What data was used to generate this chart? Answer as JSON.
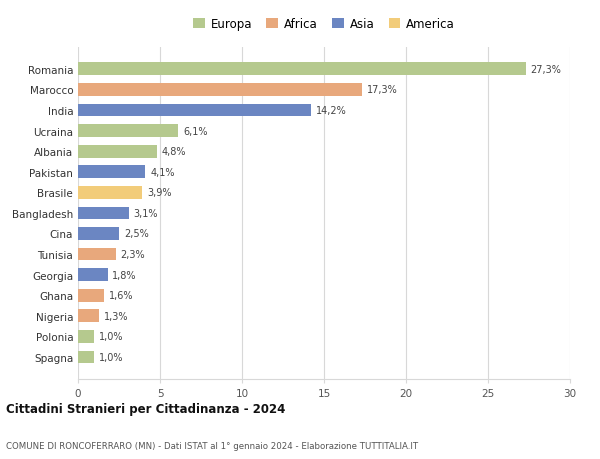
{
  "categories": [
    "Romania",
    "Marocco",
    "India",
    "Ucraina",
    "Albania",
    "Pakistan",
    "Brasile",
    "Bangladesh",
    "Cina",
    "Tunisia",
    "Georgia",
    "Ghana",
    "Nigeria",
    "Polonia",
    "Spagna"
  ],
  "values": [
    27.3,
    17.3,
    14.2,
    6.1,
    4.8,
    4.1,
    3.9,
    3.1,
    2.5,
    2.3,
    1.8,
    1.6,
    1.3,
    1.0,
    1.0
  ],
  "labels": [
    "27,3%",
    "17,3%",
    "14,2%",
    "6,1%",
    "4,8%",
    "4,1%",
    "3,9%",
    "3,1%",
    "2,5%",
    "2,3%",
    "1,8%",
    "1,6%",
    "1,3%",
    "1,0%",
    "1,0%"
  ],
  "colors": [
    "#b5c98e",
    "#e8a87c",
    "#6b86c2",
    "#b5c98e",
    "#b5c98e",
    "#6b86c2",
    "#f2cc7a",
    "#6b86c2",
    "#6b86c2",
    "#e8a87c",
    "#6b86c2",
    "#e8a87c",
    "#e8a87c",
    "#b5c98e",
    "#b5c98e"
  ],
  "legend": [
    {
      "label": "Europa",
      "color": "#b5c98e"
    },
    {
      "label": "Africa",
      "color": "#e8a87c"
    },
    {
      "label": "Asia",
      "color": "#6b86c2"
    },
    {
      "label": "America",
      "color": "#f2cc7a"
    }
  ],
  "xlim": [
    0,
    30
  ],
  "xticks": [
    0,
    5,
    10,
    15,
    20,
    25,
    30
  ],
  "title": "Cittadini Stranieri per Cittadinanza - 2024",
  "subtitle": "COMUNE DI RONCOFERRARO (MN) - Dati ISTAT al 1° gennaio 2024 - Elaborazione TUTTITALIA.IT",
  "background_color": "#ffffff",
  "grid_color": "#d8d8d8",
  "bar_height": 0.62
}
